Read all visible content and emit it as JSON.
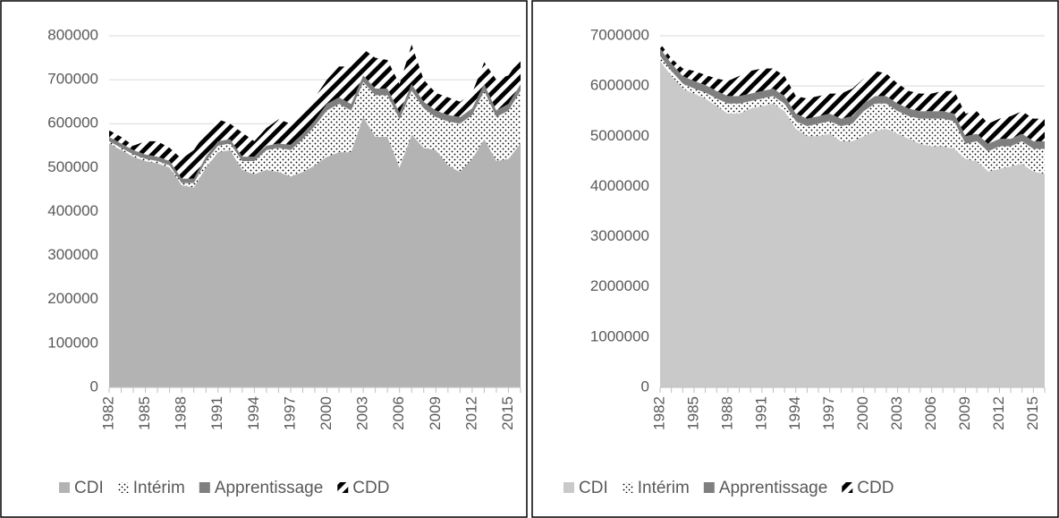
{
  "chart_data": [
    {
      "type": "area",
      "stacked": true,
      "categories": [
        "1982",
        null,
        null,
        "1985",
        null,
        null,
        "1988",
        null,
        null,
        "1991",
        null,
        null,
        "1994",
        null,
        null,
        "1997",
        null,
        null,
        "2000",
        null,
        null,
        "2003",
        null,
        null,
        "2006",
        null,
        null,
        "2009",
        null,
        null,
        "2012",
        null,
        null,
        "2015",
        null
      ],
      "series": [
        {
          "name": "CDI",
          "color": "#b3b3b3",
          "values": [
            555000,
            540000,
            525000,
            515000,
            510000,
            500000,
            460000,
            455000,
            500000,
            535000,
            540000,
            495000,
            485000,
            495000,
            490000,
            480000,
            490000,
            505000,
            525000,
            535000,
            535000,
            615000,
            570000,
            570000,
            500000,
            575000,
            545000,
            540000,
            505000,
            490000,
            520000,
            565000,
            515000,
            520000,
            555000
          ]
        },
        {
          "name": "Intérim",
          "color": "#000000",
          "pattern": "dots",
          "values": [
            5000,
            5000,
            5000,
            5000,
            5000,
            5000,
            5000,
            10000,
            15000,
            15000,
            15000,
            20000,
            30000,
            45000,
            55000,
            60000,
            75000,
            90000,
            105000,
            110000,
            95000,
            80000,
            95000,
            95000,
            110000,
            100000,
            90000,
            75000,
            100000,
            110000,
            100000,
            110000,
            100000,
            110000,
            120000
          ]
        },
        {
          "name": "Apprentissage",
          "color": "#7f7f7f",
          "values": [
            10000,
            10000,
            10000,
            10000,
            10000,
            10000,
            10000,
            10000,
            10000,
            10000,
            10000,
            10000,
            10000,
            10000,
            10000,
            12000,
            12000,
            12000,
            15000,
            15000,
            15000,
            15000,
            15000,
            15000,
            15000,
            15000,
            15000,
            15000,
            15000,
            15000,
            15000,
            15000,
            15000,
            15000,
            15000
          ]
        },
        {
          "name": "CDD",
          "color": "#000000",
          "pattern": "stripes",
          "values": [
            15000,
            15000,
            10000,
            30000,
            35000,
            30000,
            45000,
            65000,
            55000,
            50000,
            35000,
            55000,
            35000,
            40000,
            55000,
            48000,
            53000,
            53000,
            55000,
            70000,
            85000,
            60000,
            70000,
            65000,
            65000,
            90000,
            50000,
            40000,
            40000,
            35000,
            35000,
            50000,
            70000,
            65000,
            60000
          ]
        }
      ],
      "ylim": [
        0,
        800000
      ],
      "yticks": [
        0,
        100000,
        200000,
        300000,
        400000,
        500000,
        600000,
        700000,
        800000
      ],
      "grid": true,
      "legend": "bottom"
    },
    {
      "type": "area",
      "stacked": true,
      "categories": [
        "1982",
        null,
        null,
        "1985",
        null,
        null,
        "1988",
        null,
        null,
        "1991",
        null,
        null,
        "1994",
        null,
        null,
        "1997",
        null,
        null,
        "2000",
        null,
        null,
        "2003",
        null,
        null,
        "2006",
        null,
        null,
        "2009",
        null,
        null,
        "2012",
        null,
        null,
        "2015",
        null
      ],
      "series": [
        {
          "name": "CDI",
          "color": "#c9c9c9",
          "values": [
            6500000,
            6200000,
            5950000,
            5850000,
            5750000,
            5600000,
            5450000,
            5450000,
            5550000,
            5600000,
            5650000,
            5500000,
            5150000,
            5000000,
            5000000,
            5050000,
            4900000,
            4900000,
            5000000,
            5100000,
            5150000,
            5050000,
            4950000,
            4850000,
            4800000,
            4800000,
            4750000,
            4550000,
            4500000,
            4300000,
            4350000,
            4400000,
            4450000,
            4300000,
            4250000
          ]
        },
        {
          "name": "Intérim",
          "color": "#000000",
          "pattern": "dots",
          "values": [
            100000,
            100000,
            100000,
            100000,
            120000,
            150000,
            200000,
            200000,
            150000,
            150000,
            150000,
            150000,
            150000,
            200000,
            250000,
            250000,
            300000,
            350000,
            500000,
            550000,
            500000,
            450000,
            450000,
            500000,
            550000,
            550000,
            550000,
            300000,
            400000,
            400000,
            450000,
            400000,
            450000,
            450000,
            500000
          ]
        },
        {
          "name": "Apprentissage",
          "color": "#7f7f7f",
          "values": [
            150000,
            150000,
            150000,
            150000,
            150000,
            150000,
            150000,
            150000,
            150000,
            150000,
            150000,
            150000,
            150000,
            150000,
            150000,
            150000,
            150000,
            150000,
            150000,
            150000,
            150000,
            150000,
            150000,
            150000,
            150000,
            150000,
            150000,
            150000,
            150000,
            150000,
            150000,
            150000,
            150000,
            150000,
            150000
          ]
        },
        {
          "name": "CDD",
          "color": "#000000",
          "pattern": "stripes",
          "values": [
            100000,
            100000,
            150000,
            200000,
            200000,
            250000,
            300000,
            400000,
            450000,
            450000,
            400000,
            400000,
            350000,
            400000,
            400000,
            400000,
            500000,
            550000,
            500000,
            500000,
            450000,
            400000,
            350000,
            350000,
            350000,
            400000,
            450000,
            450000,
            450000,
            400000,
            400000,
            450000,
            450000,
            450000,
            450000
          ]
        }
      ],
      "ylim": [
        0,
        7000000
      ],
      "yticks": [
        0,
        1000000,
        2000000,
        3000000,
        4000000,
        5000000,
        6000000,
        7000000
      ],
      "grid": true,
      "legend": "bottom"
    }
  ]
}
